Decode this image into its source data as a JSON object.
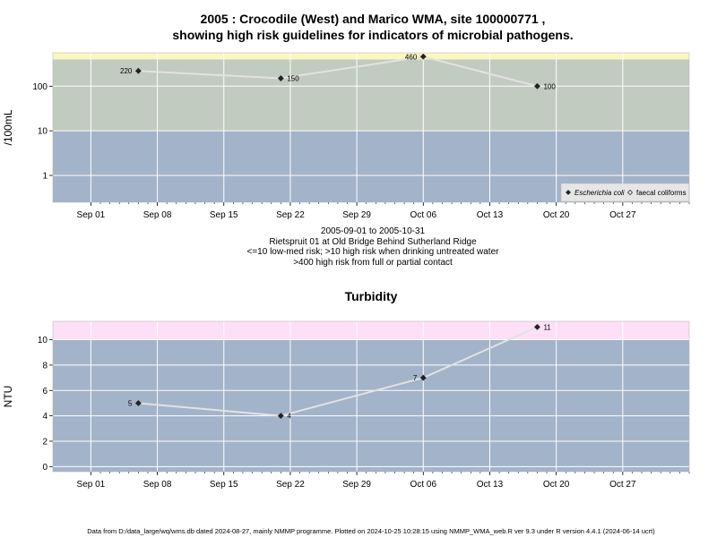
{
  "title_line1": "2005 : Crocodile (West) and Marico WMA, site 100000771 ,",
  "title_line2": "showing high risk guidelines for indicators of microbial pathogens.",
  "caption": [
    "2005-09-01 to 2005-10-31",
    "Rietspruit 01 at Old Bridge Behind Sutherland Ridge",
    "<=10 low-med risk; >10 high risk when drinking untreated water",
    ">400 high risk from full or partial contact"
  ],
  "footer": "Data from D:/data_large/wq/wms.db dated 2024-08-27, mainly NMMP programme. Plotted on 2024-10-25 10:28:15 using NMMP_WMA_web.R ver 9.3 under R version 4.4.1 (2024-06-14 ucrt)",
  "colors": {
    "low_band": "#a3b3ca",
    "mid_band": "#c2cbbf",
    "high_band_micro": "#fcf6c0",
    "high_band_turb": "#fde0f8",
    "series_line": "#e2e2e2",
    "marker": "#222222",
    "grid": "#ffffff"
  },
  "chart_data": [
    {
      "type": "line",
      "title": "",
      "ylabel": "/100mL",
      "xlabel": "",
      "yscale": "log",
      "ylim": [
        0.25,
        560
      ],
      "xlim": [
        "2005-08-28",
        "2005-11-03"
      ],
      "x_ticks": [
        "Sep 01",
        "Sep 08",
        "Sep 15",
        "Sep 22",
        "Sep 29",
        "Oct 06",
        "Oct 13",
        "Oct 20",
        "Oct 27"
      ],
      "x_tick_dates": [
        "2005-09-01",
        "2005-09-08",
        "2005-09-15",
        "2005-09-22",
        "2005-09-29",
        "2005-10-06",
        "2005-10-13",
        "2005-10-20",
        "2005-10-27"
      ],
      "y_ticks": [
        1,
        10,
        100
      ],
      "y_tick_labels": [
        "1",
        "10",
        "100"
      ],
      "bands": [
        {
          "from": 0.25,
          "to": 10,
          "color": "#a3b3ca"
        },
        {
          "from": 10,
          "to": 400,
          "color": "#c2cbbf"
        },
        {
          "from": 400,
          "to": 560,
          "color": "#fcf6c0"
        }
      ],
      "grid": true,
      "legend_position": "bottom-right",
      "legend": [
        {
          "name": "Escherichia coli",
          "marker": "filled-diamond",
          "italic": true
        },
        {
          "name": "faecal coliforms",
          "marker": "open-diamond",
          "italic": false
        }
      ],
      "series": [
        {
          "name": "Escherichia coli",
          "x": [
            "2005-09-06",
            "2005-09-21",
            "2005-10-06",
            "2005-10-18"
          ],
          "values": [
            220,
            150,
            460,
            100
          ],
          "labels": [
            "220",
            "150",
            "460",
            "100"
          ],
          "label_side": [
            "left",
            "right",
            "left",
            "right"
          ]
        }
      ]
    },
    {
      "type": "line",
      "title": "Turbidity",
      "ylabel": "NTU",
      "xlabel": "",
      "yscale": "linear",
      "ylim": [
        -0.4,
        11.45
      ],
      "xlim": [
        "2005-08-28",
        "2005-11-03"
      ],
      "x_ticks": [
        "Sep 01",
        "Sep 08",
        "Sep 15",
        "Sep 22",
        "Sep 29",
        "Oct 06",
        "Oct 13",
        "Oct 20",
        "Oct 27"
      ],
      "x_tick_dates": [
        "2005-09-01",
        "2005-09-08",
        "2005-09-15",
        "2005-09-22",
        "2005-09-29",
        "2005-10-06",
        "2005-10-13",
        "2005-10-20",
        "2005-10-27"
      ],
      "y_ticks": [
        0,
        2,
        4,
        6,
        8,
        10
      ],
      "y_tick_labels": [
        "0",
        "2",
        "4",
        "6",
        "8",
        "10"
      ],
      "bands": [
        {
          "from": -0.4,
          "to": 10,
          "color": "#a3b3ca"
        },
        {
          "from": 10,
          "to": 11.45,
          "color": "#fde0f8"
        }
      ],
      "grid": true,
      "series": [
        {
          "name": "",
          "x": [
            "2005-09-06",
            "2005-09-21",
            "2005-10-06",
            "2005-10-18"
          ],
          "values": [
            5,
            4,
            7,
            11
          ],
          "labels": [
            "5",
            "4",
            "7",
            "11"
          ],
          "label_side": [
            "left",
            "right",
            "left",
            "right"
          ]
        }
      ]
    }
  ]
}
